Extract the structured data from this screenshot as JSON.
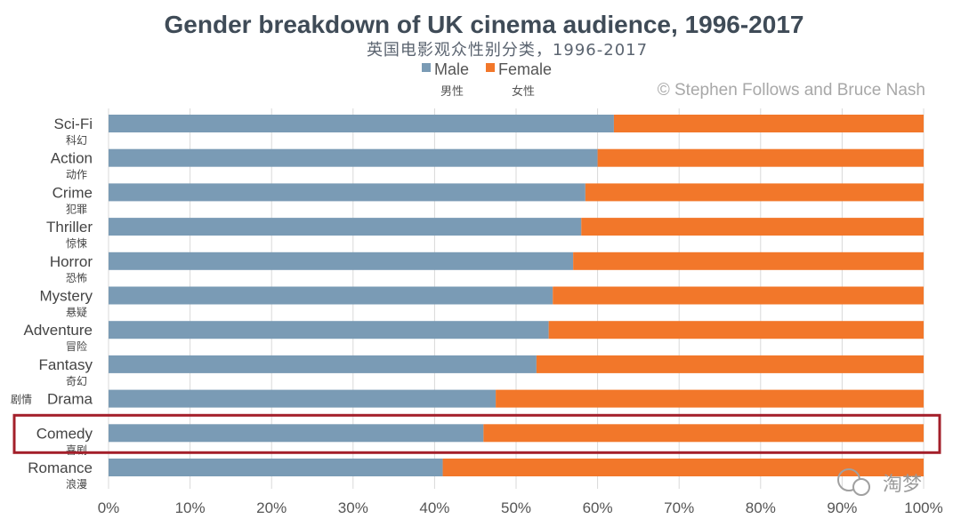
{
  "chart_data": {
    "type": "bar",
    "orientation": "horizontal",
    "stacked": true,
    "percent": true,
    "title": "Gender breakdown of UK cinema audience, 1996-2017",
    "subtitle": "英国电影观众性别分类，1996-2017",
    "credit": "© Stephen Follows and Bruce Nash",
    "legend_position": "top-center",
    "categories": [
      "Sci-Fi",
      "Action",
      "Crime",
      "Thriller",
      "Horror",
      "Mystery",
      "Adventure",
      "Fantasy",
      "Drama",
      "Comedy",
      "Romance"
    ],
    "categories_cn": [
      "科幻",
      "动作",
      "犯罪",
      "惊悚",
      "恐怖",
      "悬疑",
      "冒险",
      "奇幻",
      "剧情",
      "喜剧",
      "浪漫"
    ],
    "series": [
      {
        "name": "Male",
        "name_cn": "男性",
        "color": "#7a9bb5",
        "values": [
          62,
          60,
          58.5,
          58,
          57,
          54.5,
          54,
          52.5,
          47.5,
          46,
          41
        ]
      },
      {
        "name": "Female",
        "name_cn": "女性",
        "color": "#f2772a",
        "values": [
          38,
          40,
          41.5,
          42,
          43,
          45.5,
          46,
          47.5,
          52.5,
          54,
          59
        ]
      }
    ],
    "x_ticks": [
      "0%",
      "10%",
      "20%",
      "30%",
      "40%",
      "50%",
      "60%",
      "70%",
      "80%",
      "90%",
      "100%"
    ],
    "xlim": [
      0,
      100
    ],
    "highlighted_category": "Comedy",
    "highlight_color": "#a31f2a",
    "watermark": "淘梦"
  }
}
